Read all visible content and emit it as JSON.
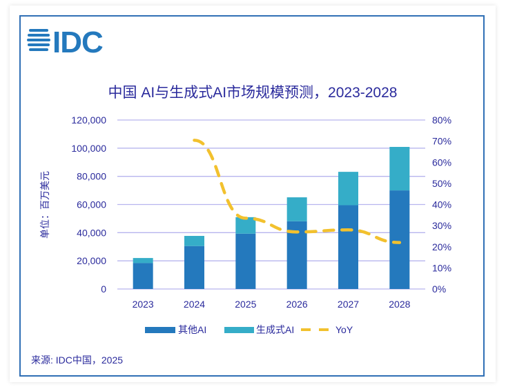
{
  "logo_text": "IDC",
  "chart_data": {
    "type": "bar",
    "stacked": true,
    "title": "中国 AI与生成式AI市场规模预测，2023-2028",
    "ylabel": "单位：百万美元",
    "xlabel": "",
    "categories": [
      "2023",
      "2024",
      "2025",
      "2026",
      "2027",
      "2028"
    ],
    "series": [
      {
        "name": "其他AI",
        "type": "bar",
        "color": "#2479bd",
        "values": [
          18400,
          30500,
          39300,
          48100,
          59500,
          70000
        ]
      },
      {
        "name": "生成式AI",
        "type": "bar",
        "color": "#35adc8",
        "values": [
          3600,
          7200,
          11700,
          17000,
          23700,
          30900
        ]
      },
      {
        "name": "YoY",
        "type": "line",
        "axis": "right",
        "dashed": true,
        "color": "#f2c12e",
        "values": [
          null,
          70.4,
          33.5,
          27,
          28,
          22
        ]
      }
    ],
    "ylim": [
      0,
      120000
    ],
    "yticks": [
      "0",
      "20,000",
      "40,000",
      "60,000",
      "80,000",
      "100,000",
      "120,000"
    ],
    "y2lim": [
      0,
      80
    ],
    "y2ticks": [
      "0%",
      "10%",
      "20%",
      "30%",
      "40%",
      "50%",
      "60%",
      "70%",
      "80%"
    ],
    "grid": true,
    "legend_position": "bottom"
  },
  "source": "来源: IDC中国，2025"
}
